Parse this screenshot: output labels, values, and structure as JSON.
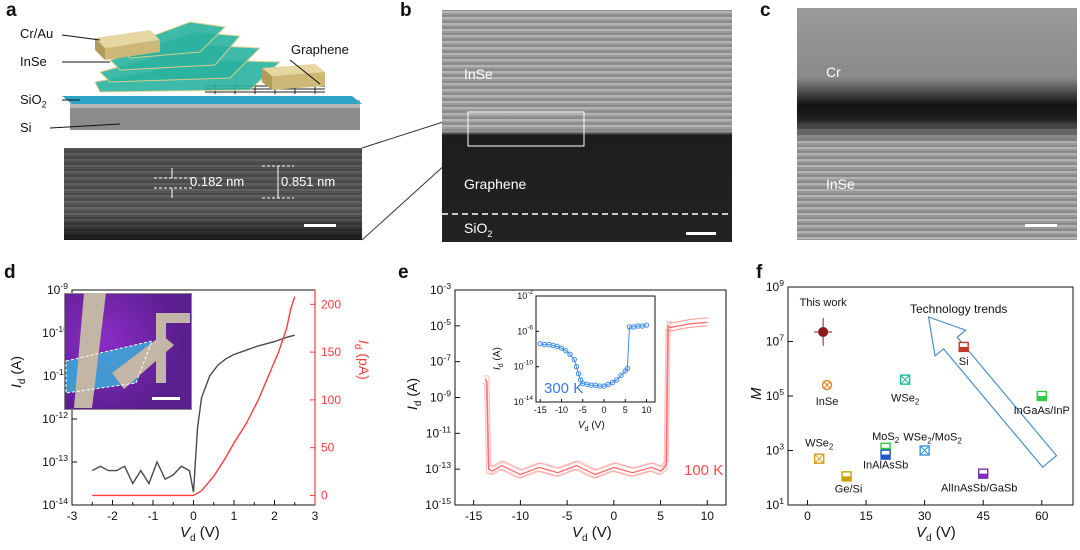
{
  "panels": {
    "a": {
      "letter": "a",
      "labels": {
        "cr_au": "Cr/Au",
        "inse": "InSe",
        "sio2": "SiO",
        "sio2_sub": "2",
        "si": "Si",
        "graphene": "Graphene"
      },
      "zoom": {
        "d1": "0.182 nm",
        "d2": "0.851 nm"
      }
    },
    "b": {
      "letter": "b",
      "inse": "InSe",
      "graphene": "Graphene",
      "sio2": "SiO",
      "sio2_sub": "2"
    },
    "c": {
      "letter": "c",
      "cr": "Cr",
      "inse": "InSe"
    },
    "d": {
      "letter": "d",
      "ylabel_left_main": "I",
      "ylabel_left_sub": "d",
      "ylabel_left_unit": " (A)",
      "ylabel_right_main": "I",
      "ylabel_right_sub": "d",
      "ylabel_right_unit": " (pA)",
      "xlabel_main": "V",
      "xlabel_sub": "d",
      "xlabel_unit": " (V)"
    },
    "e": {
      "letter": "e",
      "ylabel_main": "I",
      "ylabel_sub": "d",
      "ylabel_unit": " (A)",
      "xlabel_main": "V",
      "xlabel_sub": "d",
      "xlabel_unit": " (V)",
      "temp_main": "100 K",
      "inset": {
        "temp": "300 K",
        "ylabel": "I",
        "ylabel_sub": "d",
        "ylabel_unit": " (A)",
        "xlabel": "V",
        "xlabel_sub": "d",
        "xlabel_unit": " (V)"
      }
    },
    "f": {
      "letter": "f",
      "ylabel": "M",
      "xlabel_main": "V",
      "xlabel_sub": "d",
      "xlabel_unit": " (V)",
      "trend": "Technology trends"
    }
  },
  "chart_data": [
    {
      "type": "line",
      "panel": "d",
      "xlim": [
        -3,
        3
      ],
      "x_ticks": [
        -3,
        -2.5,
        -2,
        -1.5,
        -1,
        -0.5,
        0,
        0.5,
        1,
        1.5,
        2,
        2.5,
        3
      ],
      "x_tick_labels": [
        "-3",
        "-2",
        "-1",
        "0",
        "1",
        "2",
        "3"
      ],
      "ylim_left_log": [
        -14,
        -9
      ],
      "y_left_ticks": [
        "10^-14",
        "10^-13",
        "10^-12",
        "10^-11",
        "10^-10",
        "10^-9"
      ],
      "ylim_right": [
        -10,
        215
      ],
      "y_right_ticks": [
        0,
        50,
        100,
        150,
        200
      ],
      "series": [
        {
          "axis": "left",
          "color": "#4a4a4a",
          "x": [
            -2.5,
            -2.3,
            -2.1,
            -1.9,
            -1.7,
            -1.5,
            -1.3,
            -1.1,
            -0.9,
            -0.7,
            -0.5,
            -0.3,
            -0.1,
            0.0,
            0.1,
            0.2,
            0.4,
            0.6,
            0.8,
            1.0,
            1.3,
            1.6,
            2.0,
            2.3,
            2.5
          ],
          "log10_y": [
            -13.2,
            -13.1,
            -13.2,
            -13.2,
            -13.1,
            -13.5,
            -13.2,
            -13.5,
            -13.0,
            -13.4,
            -13.3,
            -13.1,
            -13.2,
            -13.7,
            -12.2,
            -11.5,
            -11.0,
            -10.75,
            -10.6,
            -10.5,
            -10.4,
            -10.3,
            -10.2,
            -10.1,
            -10.05
          ]
        },
        {
          "axis": "right",
          "color": "#ff3b3b",
          "x": [
            -2.5,
            -2.0,
            -1.0,
            0.0,
            0.2,
            0.5,
            0.8,
            1.0,
            1.3,
            1.6,
            1.9,
            2.1,
            2.3,
            2.4,
            2.5
          ],
          "values": [
            0,
            0,
            0,
            0,
            5,
            20,
            40,
            55,
            75,
            100,
            130,
            150,
            175,
            195,
            208
          ]
        }
      ]
    },
    {
      "type": "line",
      "panel": "e",
      "xlim": [
        -17,
        12
      ],
      "x_ticks": [
        -15,
        -10,
        -5,
        0,
        5,
        10
      ],
      "ylim_log": [
        -15,
        -3
      ],
      "y_ticks": [
        "10^-15",
        "10^-13",
        "10^-11",
        "10^-9",
        "10^-7",
        "10^-5",
        "10^-3"
      ],
      "series": [
        {
          "name": "100 K",
          "color": "#ff6a6a",
          "x": [
            -13.8,
            -13.6,
            -13.4,
            -13,
            -12,
            -10,
            -8,
            -6,
            -4,
            -2,
            0,
            2,
            4,
            5,
            5.6,
            5.8,
            6,
            8,
            10
          ],
          "log10_y": [
            -8.0,
            -8.1,
            -13.0,
            -13.1,
            -12.8,
            -13.3,
            -12.9,
            -13.2,
            -12.8,
            -13.3,
            -12.9,
            -13.2,
            -12.9,
            -13.1,
            -12.8,
            -5.0,
            -5.1,
            -4.9,
            -4.8
          ]
        }
      ],
      "inset": {
        "type": "scatter",
        "xlim": [
          -16,
          12
        ],
        "x_ticks": [
          -15,
          -10,
          -5,
          0,
          5,
          10
        ],
        "ylim_log": [
          -14,
          -2
        ],
        "y_ticks": [
          "10^-14",
          "10^-10",
          "10^-6",
          "10^-2"
        ],
        "series": [
          {
            "name": "300 K",
            "color": "#3d8cf0",
            "x": [
              -15,
              -14,
              -13,
              -12,
              -11,
              -10,
              -9,
              -8,
              -7,
              -6.5,
              -6,
              -5.5,
              -5,
              -4,
              -3,
              -2,
              -1,
              0,
              1,
              2,
              3,
              4,
              5,
              5.5,
              6,
              7,
              8,
              9,
              10
            ],
            "log10_y": [
              -7.4,
              -7.5,
              -7.5,
              -7.6,
              -7.7,
              -7.9,
              -8.2,
              -8.6,
              -9.2,
              -10.0,
              -10.8,
              -11.5,
              -11.9,
              -12.0,
              -12.1,
              -12.1,
              -12.2,
              -12.2,
              -12.0,
              -11.8,
              -11.5,
              -11.0,
              -10.5,
              -10.2,
              -5.5,
              -5.5,
              -5.4,
              -5.4,
              -5.3
            ]
          }
        ]
      }
    },
    {
      "type": "scatter",
      "panel": "f",
      "xlim": [
        -5,
        68
      ],
      "x_ticks": [
        0,
        15,
        30,
        45,
        60
      ],
      "ylim_log": [
        1,
        9
      ],
      "y_ticks": [
        "10^1",
        "10^3",
        "10^5",
        "10^7",
        "10^9"
      ],
      "points": [
        {
          "label": "This work",
          "x": 4,
          "log10_y": 7.35,
          "color": "#8b1a1a",
          "marker": "circle"
        },
        {
          "label": "Si",
          "x": 40,
          "log10_y": 6.8,
          "color": "#c0392b",
          "marker": "square-half"
        },
        {
          "label": "InSe",
          "x": 5,
          "log10_y": 5.4,
          "color": "#e67e22",
          "marker": "circle-x"
        },
        {
          "label": "WSe2",
          "x": 25,
          "log10_y": 5.6,
          "color": "#1abc9c",
          "marker": "square-x"
        },
        {
          "label": "InGaAs/InP",
          "x": 60,
          "log10_y": 5.0,
          "color": "#2ecc40",
          "marker": "square-half"
        },
        {
          "label": "MoS2",
          "x": 20,
          "log10_y": 3.1,
          "color": "#2ecc40",
          "marker": "square-half"
        },
        {
          "label": "WSe2/MoS2",
          "x": 30,
          "log10_y": 3.0,
          "color": "#3498db",
          "marker": "square-x"
        },
        {
          "label": "WSe2",
          "x": 3,
          "log10_y": 2.7,
          "color": "#d4a017",
          "marker": "square-x"
        },
        {
          "label": "InAlAsSb",
          "x": 20,
          "log10_y": 2.85,
          "color": "#2255cc",
          "marker": "square-half"
        },
        {
          "label": "Ge/Si",
          "x": 10,
          "log10_y": 2.05,
          "color": "#c8a000",
          "marker": "square-half"
        },
        {
          "label": "AlInAsSb/GaSb",
          "x": 45,
          "log10_y": 2.15,
          "color": "#7b2fb5",
          "marker": "square-half"
        }
      ]
    }
  ]
}
